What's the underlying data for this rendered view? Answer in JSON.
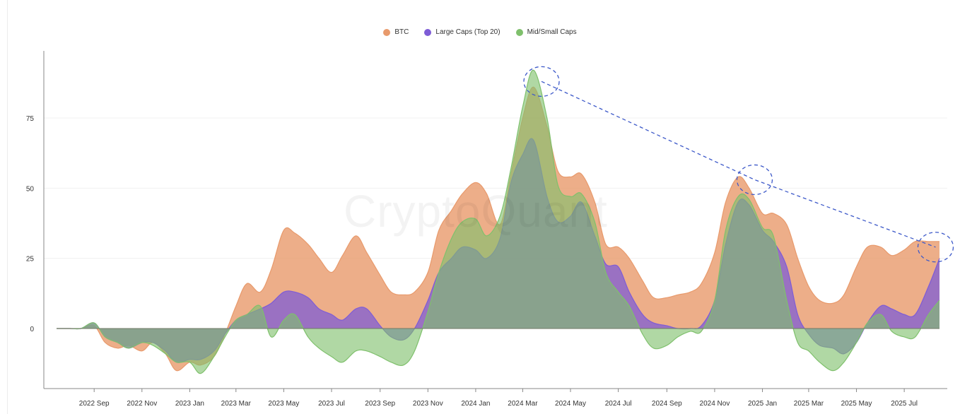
{
  "legend": [
    {
      "name": "BTC",
      "color": "#e89a6c"
    },
    {
      "name": "Large Caps (Top 20)",
      "color": "#7e5cd6"
    },
    {
      "name": "Mid/Small Caps",
      "color": "#7fc06c"
    }
  ],
  "watermark": "CryptoQuant",
  "chart_data": {
    "type": "area",
    "title": "",
    "xlabel": "",
    "ylabel": "",
    "xlim": [
      "2022-07-15",
      "2025-08-15"
    ],
    "ylim": [
      -22,
      98
    ],
    "yticks": [
      0,
      25,
      50,
      75
    ],
    "xticks": [
      "2022 Sep",
      "2022 Nov",
      "2023 Jan",
      "2023 Mar",
      "2023 May",
      "2023 Jul",
      "2023 Sep",
      "2023 Nov",
      "2024 Jan",
      "2024 Mar",
      "2024 May",
      "2024 Jul",
      "2024 Sep",
      "2024 Nov",
      "2025 Jan",
      "2025 Mar",
      "2025 May",
      "2025 Jul"
    ],
    "grid": "horizontal",
    "legend_position": "top-center",
    "x": [
      "2022-07-15",
      "2022-08-01",
      "2022-08-15",
      "2022-09-01",
      "2022-09-15",
      "2022-10-01",
      "2022-10-15",
      "2022-11-01",
      "2022-11-15",
      "2022-12-01",
      "2022-12-15",
      "2023-01-01",
      "2023-01-15",
      "2023-02-01",
      "2023-02-15",
      "2023-03-01",
      "2023-03-15",
      "2023-04-01",
      "2023-04-15",
      "2023-05-01",
      "2023-05-15",
      "2023-06-01",
      "2023-06-15",
      "2023-07-01",
      "2023-07-15",
      "2023-08-01",
      "2023-08-15",
      "2023-09-01",
      "2023-09-15",
      "2023-10-01",
      "2023-10-15",
      "2023-11-01",
      "2023-11-15",
      "2023-12-01",
      "2023-12-15",
      "2024-01-01",
      "2024-01-15",
      "2024-02-01",
      "2024-02-15",
      "2024-03-01",
      "2024-03-15",
      "2024-04-01",
      "2024-04-15",
      "2024-05-01",
      "2024-05-15",
      "2024-06-01",
      "2024-06-15",
      "2024-07-01",
      "2024-07-15",
      "2024-08-01",
      "2024-08-15",
      "2024-09-01",
      "2024-09-15",
      "2024-10-01",
      "2024-10-15",
      "2024-11-01",
      "2024-11-15",
      "2024-12-01",
      "2024-12-15",
      "2025-01-01",
      "2025-01-15",
      "2025-02-01",
      "2025-02-15",
      "2025-03-01",
      "2025-03-15",
      "2025-04-01",
      "2025-04-15",
      "2025-05-01",
      "2025-05-15",
      "2025-06-01",
      "2025-06-15",
      "2025-07-01",
      "2025-07-15",
      "2025-08-01",
      "2025-08-15"
    ],
    "series": [
      {
        "name": "BTC",
        "color": "#e89a6c",
        "values": [
          0,
          0,
          0,
          1,
          -5,
          -7,
          -6,
          -8,
          -5,
          -9,
          -15,
          -12,
          -13,
          -10,
          -2,
          8,
          16,
          13,
          21,
          35,
          34,
          30,
          25,
          20,
          26,
          33,
          27,
          19,
          13,
          12,
          13,
          20,
          35,
          42,
          48,
          52,
          48,
          37,
          55,
          75,
          86,
          72,
          56,
          54,
          55,
          45,
          30,
          29,
          25,
          17,
          11,
          11,
          12,
          13,
          16,
          27,
          45,
          54,
          50,
          41,
          41,
          37,
          25,
          15,
          10,
          9,
          12,
          22,
          29,
          29,
          26,
          28,
          31,
          31,
          31
        ]
      },
      {
        "name": "Large Caps (Top 20)",
        "color": "#7e5cd6",
        "values": [
          0,
          0,
          0,
          2,
          -3,
          -5,
          -7,
          -5,
          -5,
          -8,
          -12,
          -11,
          -11,
          -8,
          -2,
          3,
          5,
          7,
          9,
          13,
          13,
          11,
          7,
          5,
          3,
          7,
          7,
          1,
          -3,
          -4,
          0,
          10,
          20,
          25,
          29,
          28,
          25,
          32,
          52,
          62,
          67,
          47,
          38,
          40,
          45,
          33,
          23,
          22,
          13,
          5,
          2,
          1,
          0,
          0,
          1,
          10,
          30,
          45,
          44,
          35,
          31,
          22,
          5,
          -2,
          -6,
          -7,
          -9,
          -5,
          2,
          8,
          7,
          5,
          5,
          15,
          25
        ]
      },
      {
        "name": "Mid/Small Caps",
        "color": "#7fc06c",
        "values": [
          0,
          0,
          0,
          2,
          -3,
          -5,
          -7,
          -5,
          -6,
          -9,
          -12,
          -12,
          -16,
          -10,
          -3,
          3,
          5,
          8,
          -3,
          3,
          5,
          -3,
          -7,
          -10,
          -12,
          -8,
          -8,
          -10,
          -12,
          -13,
          -8,
          6,
          20,
          32,
          38,
          39,
          33,
          40,
          57,
          79,
          92,
          75,
          51,
          47,
          48,
          38,
          20,
          13,
          8,
          -2,
          -7,
          -6,
          -3,
          -1,
          -1,
          10,
          35,
          47,
          46,
          36,
          33,
          10,
          -5,
          -8,
          -12,
          -15,
          -12,
          -5,
          2,
          5,
          -1,
          -3,
          -3,
          5,
          10
        ]
      }
    ]
  }
}
